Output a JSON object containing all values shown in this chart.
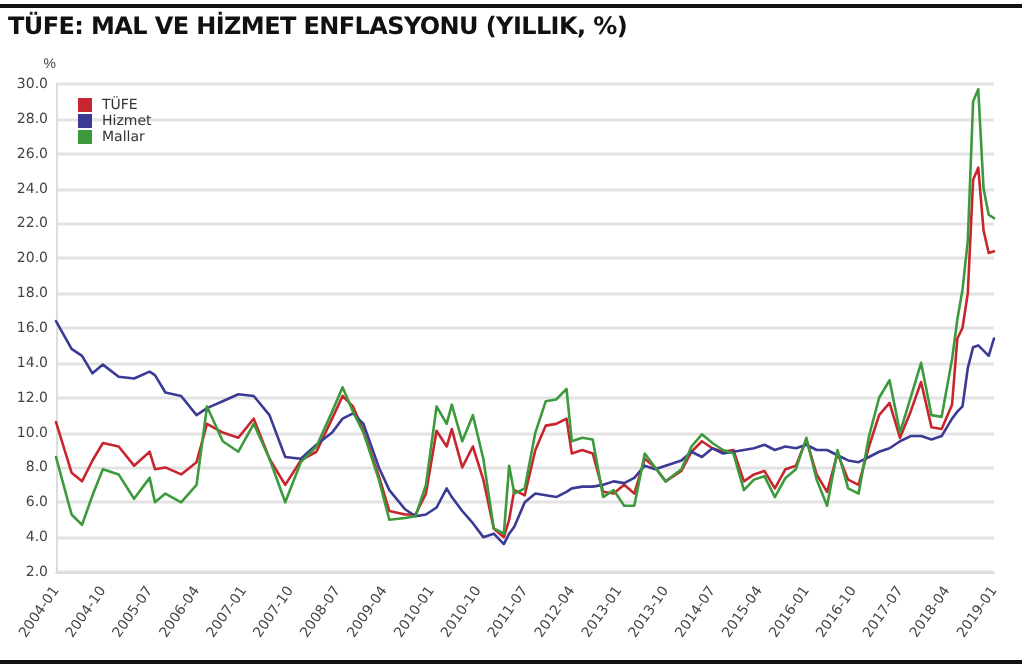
{
  "chart_data": {
    "type": "line",
    "title": "TÜFE: MAL VE HİZMET ENFLASYONU (YILLIK, %)",
    "ylabel": "%",
    "x": [
      "2004-01",
      "2004-04",
      "2004-06",
      "2004-08",
      "2004-10",
      "2005-01",
      "2005-04",
      "2005-07",
      "2005-08",
      "2005-10",
      "2006-01",
      "2006-04",
      "2006-06",
      "2006-09",
      "2006-12",
      "2007-03",
      "2007-06",
      "2007-09",
      "2007-12",
      "2008-03",
      "2008-06",
      "2008-08",
      "2008-10",
      "2008-12",
      "2009-03",
      "2009-05",
      "2009-08",
      "2009-10",
      "2009-12",
      "2010-02",
      "2010-04",
      "2010-05",
      "2010-07",
      "2010-09",
      "2010-11",
      "2011-01",
      "2011-03",
      "2011-04",
      "2011-05",
      "2011-07",
      "2011-09",
      "2011-11",
      "2012-01",
      "2012-03",
      "2012-04",
      "2012-06",
      "2012-08",
      "2012-10",
      "2012-12",
      "2013-02",
      "2013-04",
      "2013-06",
      "2013-08",
      "2013-10",
      "2014-01",
      "2014-03",
      "2014-05",
      "2014-07",
      "2014-09",
      "2014-11",
      "2015-01",
      "2015-03",
      "2015-05",
      "2015-07",
      "2015-09",
      "2015-11",
      "2016-01",
      "2016-03",
      "2016-05",
      "2016-07",
      "2016-09",
      "2016-11",
      "2017-01",
      "2017-03",
      "2017-05",
      "2017-07",
      "2017-09",
      "2017-11",
      "2018-01",
      "2018-03",
      "2018-05",
      "2018-06",
      "2018-07",
      "2018-08",
      "2018-09",
      "2018-10",
      "2018-11",
      "2018-12",
      "2019-01"
    ],
    "series": [
      {
        "name": "TÜFE",
        "color": "#c8262e",
        "values": [
          10.6,
          7.7,
          7.2,
          8.4,
          9.4,
          9.2,
          8.1,
          8.9,
          7.9,
          8.0,
          7.6,
          8.3,
          10.5,
          10.0,
          9.7,
          10.8,
          8.5,
          7.0,
          8.4,
          8.9,
          10.8,
          12.1,
          11.5,
          10.1,
          7.5,
          5.5,
          5.3,
          5.3,
          6.5,
          10.1,
          9.2,
          10.2,
          8.0,
          9.2,
          7.3,
          4.5,
          4.0,
          5.0,
          6.7,
          6.4,
          9.0,
          10.4,
          10.5,
          10.8,
          8.8,
          9.0,
          8.8,
          6.6,
          6.5,
          7.0,
          6.5,
          8.5,
          8.0,
          7.2,
          7.8,
          8.9,
          9.5,
          9.1,
          8.9,
          9.0,
          7.2,
          7.6,
          7.8,
          6.8,
          7.9,
          8.1,
          9.6,
          7.6,
          6.6,
          8.8,
          7.3,
          7.0,
          9.2,
          11.0,
          11.7,
          9.7,
          11.2,
          12.9,
          10.3,
          10.2,
          11.6,
          15.4,
          16.0,
          18.0,
          24.5,
          25.2,
          21.6,
          20.3,
          20.4
        ]
      },
      {
        "name": "Hizmet",
        "color": "#3b3a94",
        "values": [
          16.4,
          14.8,
          14.4,
          13.4,
          13.9,
          13.2,
          13.1,
          13.5,
          13.3,
          12.3,
          12.1,
          11.0,
          11.4,
          11.8,
          12.2,
          12.1,
          11.0,
          8.6,
          8.5,
          9.3,
          10.0,
          10.8,
          11.1,
          10.5,
          8.0,
          6.7,
          5.6,
          5.2,
          5.3,
          5.7,
          6.8,
          6.3,
          5.5,
          4.8,
          4.0,
          4.2,
          3.6,
          4.2,
          4.6,
          6.0,
          6.5,
          6.4,
          6.3,
          6.6,
          6.8,
          6.9,
          6.9,
          7.0,
          7.2,
          7.1,
          7.4,
          8.1,
          7.9,
          8.1,
          8.4,
          8.9,
          8.6,
          9.1,
          8.8,
          8.9,
          9.0,
          9.1,
          9.3,
          9.0,
          9.2,
          9.1,
          9.3,
          9.0,
          9.0,
          8.7,
          8.4,
          8.3,
          8.6,
          8.9,
          9.1,
          9.5,
          9.8,
          9.8,
          9.6,
          9.8,
          10.8,
          11.2,
          11.5,
          13.7,
          14.9,
          15.0,
          14.7,
          14.4,
          15.4
        ]
      },
      {
        "name": "Mallar",
        "color": "#3c9a3c",
        "values": [
          8.6,
          5.3,
          4.7,
          6.4,
          7.9,
          7.6,
          6.2,
          7.4,
          6.0,
          6.5,
          6.0,
          7.0,
          11.5,
          9.5,
          8.9,
          10.5,
          8.5,
          6.0,
          8.3,
          9.2,
          11.2,
          12.6,
          11.2,
          10.0,
          7.3,
          5.0,
          5.1,
          5.2,
          7.0,
          11.5,
          10.5,
          11.6,
          9.5,
          11.0,
          8.5,
          4.5,
          4.2,
          8.1,
          6.5,
          6.8,
          10.0,
          11.8,
          11.9,
          12.5,
          9.5,
          9.7,
          9.6,
          6.3,
          6.7,
          5.8,
          5.8,
          8.8,
          8.0,
          7.2,
          7.9,
          9.2,
          9.9,
          9.4,
          9.0,
          8.8,
          6.7,
          7.3,
          7.5,
          6.3,
          7.4,
          7.9,
          9.7,
          7.3,
          5.8,
          9.0,
          6.8,
          6.5,
          9.8,
          12.0,
          13.0,
          10.0,
          12.0,
          14.0,
          11.0,
          10.9,
          14.2,
          16.5,
          18.2,
          21.0,
          29.0,
          29.7,
          24.0,
          22.5,
          22.3
        ]
      }
    ],
    "xlim": [
      "2004-01",
      "2019-01"
    ],
    "xticks": [
      "2004-01",
      "2004-10",
      "2005-07",
      "2006-04",
      "2007-01",
      "2007-10",
      "2008-07",
      "2009-04",
      "2010-01",
      "2010-10",
      "2011-07",
      "2012-04",
      "2013-01",
      "2013-10",
      "2014-07",
      "2015-04",
      "2016-01",
      "2016-10",
      "2017-07",
      "2018-04",
      "2019-01"
    ],
    "ylim": [
      2,
      30
    ],
    "yticks": [
      {
        "value": 2,
        "label": "2.0"
      },
      {
        "value": 4,
        "label": "4.0"
      },
      {
        "value": 6,
        "label": "6.0"
      },
      {
        "value": 8,
        "label": "8.0"
      },
      {
        "value": 10,
        "label": "10.0"
      },
      {
        "value": 12,
        "label": "12.0"
      },
      {
        "value": 14,
        "label": "14.0"
      },
      {
        "value": 16,
        "label": "16.0"
      },
      {
        "value": 18,
        "label": "18.0"
      },
      {
        "value": 20,
        "label": "20.0"
      },
      {
        "value": 22,
        "label": "22.0"
      },
      {
        "value": 24,
        "label": "24.0"
      },
      {
        "value": 26,
        "label": "26.0"
      },
      {
        "value": 28,
        "label": "28.0"
      },
      {
        "value": 30,
        "label": "30.0"
      }
    ],
    "grid": "y",
    "legend": "top left",
    "marker": "none",
    "line_style": "solid"
  }
}
